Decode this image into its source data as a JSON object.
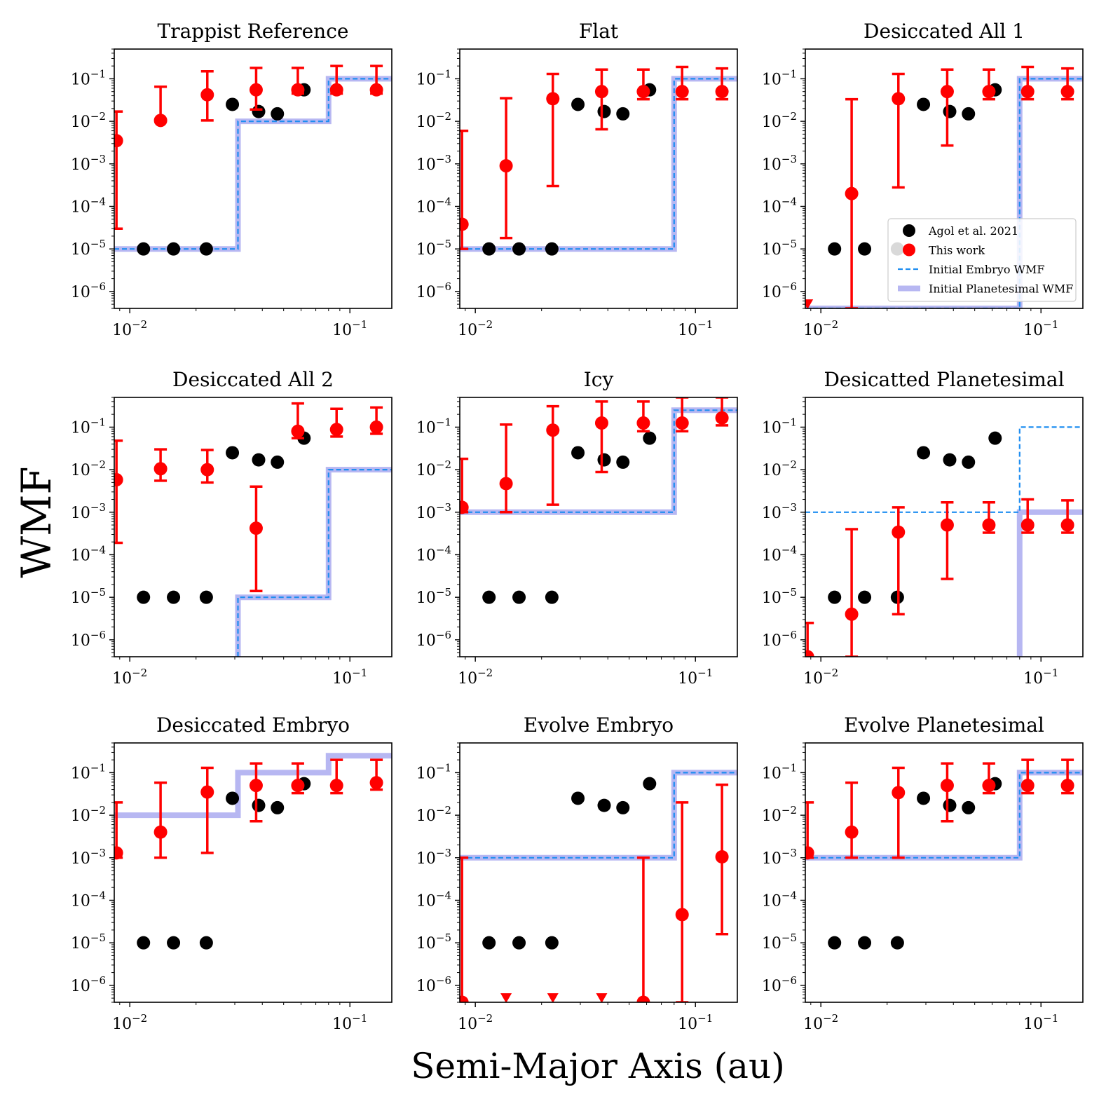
{
  "figure": {
    "ylabel": "WMF",
    "xlabel": "Semi-Major Axis (au)"
  },
  "legend": {
    "panel": 2,
    "placement": "lower-right",
    "entries": [
      {
        "label": "Agol et al. 2021",
        "kind": "marker",
        "color": "#000000"
      },
      {
        "label": "This work",
        "kind": "marker",
        "color": "#ff0000"
      },
      {
        "label": "Initial Embryo WMF",
        "kind": "dashed",
        "color": "#1f8ef1"
      },
      {
        "label": "Initial Planetesimal WMF",
        "kind": "band",
        "color": "#b7b7f2"
      }
    ]
  },
  "colors": {
    "agol": "#000000",
    "this_work": "#ff0000",
    "embryo": "#1f8ef1",
    "planetesimal": "#b7b7f2"
  },
  "chart_data": [
    {
      "type": "scatter",
      "title": "Trappist Reference",
      "xscale": "log",
      "yscale": "log",
      "xlim": [
        0.0085,
        0.155
      ],
      "ylim": [
        4e-07,
        0.5
      ],
      "xticks": [
        "10⁻²",
        "10⁻¹"
      ],
      "yticks": [
        "10⁻⁶",
        "10⁻⁵",
        "10⁻⁴",
        "10⁻³",
        "10⁻²",
        "10⁻¹"
      ],
      "agol": {
        "x": [
          0.01154,
          0.0158,
          0.02227,
          0.02925,
          0.03849,
          0.04683,
          0.06189
        ],
        "y": [
          1e-05,
          1e-05,
          1e-05,
          0.025,
          0.017,
          0.015,
          0.055
        ]
      },
      "this_work": [
        {
          "x": 0.0087,
          "y": 0.0035,
          "lo": 3e-05,
          "hi": 0.017
        },
        {
          "x": 0.0138,
          "y": 0.0105,
          "lo": 0.0098,
          "hi": 0.065
        },
        {
          "x": 0.0225,
          "y": 0.042,
          "lo": 0.0105,
          "hi": 0.15
        },
        {
          "x": 0.0375,
          "y": 0.055,
          "lo": 0.019,
          "hi": 0.18
        },
        {
          "x": 0.058,
          "y": 0.055,
          "lo": 0.045,
          "hi": 0.18
        },
        {
          "x": 0.087,
          "y": 0.055,
          "lo": 0.045,
          "hi": 0.2
        },
        {
          "x": 0.132,
          "y": 0.055,
          "lo": 0.045,
          "hi": 0.2
        }
      ],
      "upper_limits": [],
      "embryo": {
        "x": [
          0.0085,
          0.031,
          0.031,
          0.08,
          0.08,
          0.155
        ],
        "y": [
          1e-05,
          1e-05,
          0.01,
          0.01,
          0.1,
          0.1
        ]
      },
      "planetesimal": {
        "x": [
          0.0085,
          0.031,
          0.031,
          0.08,
          0.08,
          0.155
        ],
        "y": [
          1e-05,
          1e-05,
          0.01,
          0.01,
          0.1,
          0.1
        ]
      }
    },
    {
      "type": "scatter",
      "title": "Flat",
      "xscale": "log",
      "yscale": "log",
      "xlim": [
        0.0085,
        0.155
      ],
      "ylim": [
        4e-07,
        0.5
      ],
      "xticks": [
        "10⁻²",
        "10⁻¹"
      ],
      "yticks": [
        "10⁻⁶",
        "10⁻⁵",
        "10⁻⁴",
        "10⁻³",
        "10⁻²",
        "10⁻¹"
      ],
      "agol": {
        "x": [
          0.01154,
          0.0158,
          0.02227,
          0.02925,
          0.03849,
          0.04683,
          0.06189
        ],
        "y": [
          1e-05,
          1e-05,
          1e-05,
          0.025,
          0.017,
          0.015,
          0.055
        ]
      },
      "this_work": [
        {
          "x": 0.0087,
          "y": 3.8e-05,
          "lo": 1e-05,
          "hi": 0.006
        },
        {
          "x": 0.0138,
          "y": 0.0009,
          "lo": 1.8e-05,
          "hi": 0.035
        },
        {
          "x": 0.0225,
          "y": 0.034,
          "lo": 0.0003,
          "hi": 0.13
        },
        {
          "x": 0.0375,
          "y": 0.05,
          "lo": 0.0065,
          "hi": 0.165
        },
        {
          "x": 0.058,
          "y": 0.05,
          "lo": 0.033,
          "hi": 0.165
        },
        {
          "x": 0.087,
          "y": 0.05,
          "lo": 0.033,
          "hi": 0.19
        },
        {
          "x": 0.132,
          "y": 0.05,
          "lo": 0.033,
          "hi": 0.175
        }
      ],
      "upper_limits": [],
      "embryo": {
        "x": [
          0.0085,
          0.08,
          0.08,
          0.155
        ],
        "y": [
          1e-05,
          1e-05,
          0.1,
          0.1
        ]
      },
      "planetesimal": {
        "x": [
          0.0085,
          0.08,
          0.08,
          0.155
        ],
        "y": [
          1e-05,
          1e-05,
          0.1,
          0.1
        ]
      }
    },
    {
      "type": "scatter",
      "title": "Desiccated All 1",
      "xscale": "log",
      "yscale": "log",
      "xlim": [
        0.0085,
        0.155
      ],
      "ylim": [
        4e-07,
        0.5
      ],
      "xticks": [
        "10⁻²",
        "10⁻¹"
      ],
      "yticks": [
        "10⁻⁶",
        "10⁻⁵",
        "10⁻⁴",
        "10⁻³",
        "10⁻²",
        "10⁻¹"
      ],
      "agol": {
        "x": [
          0.01154,
          0.0158,
          0.02227,
          0.02925,
          0.03849,
          0.04683,
          0.06189
        ],
        "y": [
          1e-05,
          1e-05,
          1e-05,
          0.025,
          0.017,
          0.015,
          0.055
        ]
      },
      "this_work": [
        {
          "x": 0.0138,
          "y": 0.0002,
          "lo": 4e-07,
          "hi": 0.033
        },
        {
          "x": 0.0225,
          "y": 0.034,
          "lo": 0.00028,
          "hi": 0.13
        },
        {
          "x": 0.0375,
          "y": 0.05,
          "lo": 0.0027,
          "hi": 0.165
        },
        {
          "x": 0.058,
          "y": 0.05,
          "lo": 0.033,
          "hi": 0.165
        },
        {
          "x": 0.087,
          "y": 0.05,
          "lo": 0.033,
          "hi": 0.19
        },
        {
          "x": 0.132,
          "y": 0.05,
          "lo": 0.033,
          "hi": 0.175
        }
      ],
      "upper_limits": [
        {
          "x": 0.0087,
          "y": 5e-07
        }
      ],
      "embryo": {
        "x": [
          0.0085,
          0.08,
          0.08,
          0.155
        ],
        "y": [
          4e-07,
          4e-07,
          0.1,
          0.1
        ]
      },
      "planetesimal": {
        "x": [
          0.0085,
          0.08,
          0.08,
          0.155
        ],
        "y": [
          4e-07,
          4e-07,
          0.1,
          0.1
        ]
      }
    },
    {
      "type": "scatter",
      "title": "Desiccated All 2",
      "xscale": "log",
      "yscale": "log",
      "xlim": [
        0.0085,
        0.155
      ],
      "ylim": [
        4e-07,
        0.5
      ],
      "xticks": [
        "10⁻²",
        "10⁻¹"
      ],
      "yticks": [
        "10⁻⁶",
        "10⁻⁵",
        "10⁻⁴",
        "10⁻³",
        "10⁻²",
        "10⁻¹"
      ],
      "agol": {
        "x": [
          0.01154,
          0.0158,
          0.02227,
          0.02925,
          0.03849,
          0.04683,
          0.06189
        ],
        "y": [
          1e-05,
          1e-05,
          1e-05,
          0.025,
          0.017,
          0.015,
          0.055
        ]
      },
      "this_work": [
        {
          "x": 0.0087,
          "y": 0.0058,
          "lo": 0.00019,
          "hi": 0.048
        },
        {
          "x": 0.0138,
          "y": 0.0105,
          "lo": 0.0055,
          "hi": 0.03
        },
        {
          "x": 0.0225,
          "y": 0.01,
          "lo": 0.005,
          "hi": 0.029
        },
        {
          "x": 0.0375,
          "y": 0.00042,
          "lo": 1.4e-05,
          "hi": 0.004
        },
        {
          "x": 0.058,
          "y": 0.08,
          "lo": 0.055,
          "hi": 0.36
        },
        {
          "x": 0.087,
          "y": 0.088,
          "lo": 0.06,
          "hi": 0.27
        },
        {
          "x": 0.132,
          "y": 0.1,
          "lo": 0.07,
          "hi": 0.29
        }
      ],
      "upper_limits": [],
      "embryo": {
        "x": [
          0.031,
          0.031,
          0.08,
          0.08,
          0.155
        ],
        "y": [
          4e-07,
          1e-05,
          1e-05,
          0.01,
          0.01
        ]
      },
      "planetesimal": {
        "x": [
          0.031,
          0.031,
          0.08,
          0.08,
          0.155
        ],
        "y": [
          4e-07,
          1e-05,
          1e-05,
          0.01,
          0.01
        ]
      }
    },
    {
      "type": "scatter",
      "title": "Icy",
      "xscale": "log",
      "yscale": "log",
      "xlim": [
        0.0085,
        0.155
      ],
      "ylim": [
        4e-07,
        0.5
      ],
      "xticks": [
        "10⁻²",
        "10⁻¹"
      ],
      "yticks": [
        "10⁻⁶",
        "10⁻⁵",
        "10⁻⁴",
        "10⁻³",
        "10⁻²",
        "10⁻¹"
      ],
      "agol": {
        "x": [
          0.01154,
          0.0158,
          0.02227,
          0.02925,
          0.03849,
          0.04683,
          0.06189
        ],
        "y": [
          1e-05,
          1e-05,
          1e-05,
          0.025,
          0.017,
          0.015,
          0.055
        ]
      },
      "this_work": [
        {
          "x": 0.0087,
          "y": 0.0013,
          "lo": 0.001,
          "hi": 0.018
        },
        {
          "x": 0.0138,
          "y": 0.0047,
          "lo": 0.001,
          "hi": 0.115
        },
        {
          "x": 0.0225,
          "y": 0.085,
          "lo": 0.0015,
          "hi": 0.31
        },
        {
          "x": 0.0375,
          "y": 0.125,
          "lo": 0.0088,
          "hi": 0.4
        },
        {
          "x": 0.058,
          "y": 0.125,
          "lo": 0.08,
          "hi": 0.4
        },
        {
          "x": 0.087,
          "y": 0.125,
          "lo": 0.08,
          "hi": 0.5
        },
        {
          "x": 0.132,
          "y": 0.165,
          "lo": 0.11,
          "hi": 0.5
        }
      ],
      "upper_limits": [],
      "embryo": {
        "x": [
          0.0085,
          0.08,
          0.08,
          0.155
        ],
        "y": [
          0.001,
          0.001,
          0.25,
          0.25
        ]
      },
      "planetesimal": {
        "x": [
          0.0085,
          0.08,
          0.08,
          0.155
        ],
        "y": [
          0.001,
          0.001,
          0.25,
          0.25
        ]
      }
    },
    {
      "type": "scatter",
      "title": "Desicatted Planetesimal",
      "xscale": "log",
      "yscale": "log",
      "xlim": [
        0.0085,
        0.155
      ],
      "ylim": [
        4e-07,
        0.5
      ],
      "xticks": [
        "10⁻²",
        "10⁻¹"
      ],
      "yticks": [
        "10⁻⁶",
        "10⁻⁵",
        "10⁻⁴",
        "10⁻³",
        "10⁻²",
        "10⁻¹"
      ],
      "agol": {
        "x": [
          0.01154,
          0.0158,
          0.02227,
          0.02925,
          0.03849,
          0.04683,
          0.06189
        ],
        "y": [
          1e-05,
          1e-05,
          1e-05,
          0.025,
          0.017,
          0.015,
          0.055
        ]
      },
      "this_work": [
        {
          "x": 0.0087,
          "y": 4e-07,
          "lo": 4e-07,
          "hi": 2.5e-06
        },
        {
          "x": 0.0138,
          "y": 4e-06,
          "lo": 4e-07,
          "hi": 0.0004
        },
        {
          "x": 0.0225,
          "y": 0.00034,
          "lo": 4e-06,
          "hi": 0.0013
        },
        {
          "x": 0.0375,
          "y": 0.0005,
          "lo": 2.7e-05,
          "hi": 0.0017
        },
        {
          "x": 0.058,
          "y": 0.0005,
          "lo": 0.00033,
          "hi": 0.0017
        },
        {
          "x": 0.087,
          "y": 0.0005,
          "lo": 0.00033,
          "hi": 0.002
        },
        {
          "x": 0.132,
          "y": 0.0005,
          "lo": 0.00033,
          "hi": 0.0019
        }
      ],
      "upper_limits": [],
      "embryo": {
        "x": [
          0.0085,
          0.08,
          0.08,
          0.155
        ],
        "y": [
          0.001,
          0.001,
          0.1,
          0.1
        ]
      },
      "planetesimal": {
        "x": [
          0.08,
          0.08,
          0.155
        ],
        "y": [
          4e-07,
          0.001,
          0.001
        ]
      }
    },
    {
      "type": "scatter",
      "title": "Desiccated Embryo",
      "xscale": "log",
      "yscale": "log",
      "xlim": [
        0.0085,
        0.155
      ],
      "ylim": [
        4e-07,
        0.5
      ],
      "xticks": [
        "10⁻²",
        "10⁻¹"
      ],
      "yticks": [
        "10⁻⁶",
        "10⁻⁵",
        "10⁻⁴",
        "10⁻³",
        "10⁻²",
        "10⁻¹"
      ],
      "agol": {
        "x": [
          0.01154,
          0.0158,
          0.02227,
          0.02925,
          0.03849,
          0.04683,
          0.06189
        ],
        "y": [
          1e-05,
          1e-05,
          1e-05,
          0.025,
          0.017,
          0.015,
          0.055
        ]
      },
      "this_work": [
        {
          "x": 0.0087,
          "y": 0.0013,
          "lo": 0.001,
          "hi": 0.02
        },
        {
          "x": 0.0138,
          "y": 0.004,
          "lo": 0.001,
          "hi": 0.058
        },
        {
          "x": 0.0225,
          "y": 0.035,
          "lo": 0.0013,
          "hi": 0.13
        },
        {
          "x": 0.0375,
          "y": 0.05,
          "lo": 0.0072,
          "hi": 0.165
        },
        {
          "x": 0.058,
          "y": 0.05,
          "lo": 0.033,
          "hi": 0.165
        },
        {
          "x": 0.087,
          "y": 0.05,
          "lo": 0.033,
          "hi": 0.2
        },
        {
          "x": 0.132,
          "y": 0.058,
          "lo": 0.04,
          "hi": 0.2
        }
      ],
      "upper_limits": [],
      "embryo": null,
      "planetesimal": {
        "x": [
          0.0085,
          0.031,
          0.031,
          0.08,
          0.08,
          0.155
        ],
        "y": [
          0.01,
          0.01,
          0.1,
          0.1,
          0.25,
          0.25
        ]
      }
    },
    {
      "type": "scatter",
      "title": "Evolve Embryo",
      "xscale": "log",
      "yscale": "log",
      "xlim": [
        0.0085,
        0.155
      ],
      "ylim": [
        4e-07,
        0.5
      ],
      "xticks": [
        "10⁻²",
        "10⁻¹"
      ],
      "yticks": [
        "10⁻⁶",
        "10⁻⁵",
        "10⁻⁴",
        "10⁻³",
        "10⁻²",
        "10⁻¹"
      ],
      "agol": {
        "x": [
          0.01154,
          0.0158,
          0.02227,
          0.02925,
          0.03849,
          0.04683,
          0.06189
        ],
        "y": [
          1e-05,
          1e-05,
          1e-05,
          0.025,
          0.017,
          0.015,
          0.055
        ]
      },
      "this_work": [
        {
          "x": 0.0087,
          "y": 4e-07,
          "lo": 4e-07,
          "hi": 0.001
        },
        {
          "x": 0.058,
          "y": 4e-07,
          "lo": 4e-07,
          "hi": 0.001
        },
        {
          "x": 0.087,
          "y": 4.6e-05,
          "lo": 4e-07,
          "hi": 0.02
        },
        {
          "x": 0.132,
          "y": 0.00105,
          "lo": 1.6e-05,
          "hi": 0.052
        }
      ],
      "upper_limits": [
        {
          "x": 0.0138,
          "y": 5e-07
        },
        {
          "x": 0.0225,
          "y": 5e-07
        },
        {
          "x": 0.0375,
          "y": 5e-07
        }
      ],
      "embryo": {
        "x": [
          0.0085,
          0.08,
          0.08,
          0.155
        ],
        "y": [
          0.001,
          0.001,
          0.1,
          0.1
        ]
      },
      "planetesimal": {
        "x": [
          0.0085,
          0.08,
          0.08,
          0.155
        ],
        "y": [
          0.001,
          0.001,
          0.1,
          0.1
        ]
      }
    },
    {
      "type": "scatter",
      "title": "Evolve Planetesimal",
      "xscale": "log",
      "yscale": "log",
      "xlim": [
        0.0085,
        0.155
      ],
      "ylim": [
        4e-07,
        0.5
      ],
      "xticks": [
        "10⁻²",
        "10⁻¹"
      ],
      "yticks": [
        "10⁻⁶",
        "10⁻⁵",
        "10⁻⁴",
        "10⁻³",
        "10⁻²",
        "10⁻¹"
      ],
      "agol": {
        "x": [
          0.01154,
          0.0158,
          0.02227,
          0.02925,
          0.03849,
          0.04683,
          0.06189
        ],
        "y": [
          1e-05,
          1e-05,
          1e-05,
          0.025,
          0.017,
          0.015,
          0.055
        ]
      },
      "this_work": [
        {
          "x": 0.0087,
          "y": 0.0013,
          "lo": 0.001,
          "hi": 0.02
        },
        {
          "x": 0.0138,
          "y": 0.004,
          "lo": 0.001,
          "hi": 0.058
        },
        {
          "x": 0.0225,
          "y": 0.034,
          "lo": 0.001,
          "hi": 0.13
        },
        {
          "x": 0.0375,
          "y": 0.05,
          "lo": 0.0072,
          "hi": 0.165
        },
        {
          "x": 0.058,
          "y": 0.05,
          "lo": 0.033,
          "hi": 0.165
        },
        {
          "x": 0.087,
          "y": 0.05,
          "lo": 0.033,
          "hi": 0.2
        },
        {
          "x": 0.132,
          "y": 0.05,
          "lo": 0.033,
          "hi": 0.2
        }
      ],
      "upper_limits": [],
      "embryo": {
        "x": [
          0.0085,
          0.08,
          0.08,
          0.155
        ],
        "y": [
          0.001,
          0.001,
          0.1,
          0.1
        ]
      },
      "planetesimal": {
        "x": [
          0.0085,
          0.08,
          0.08,
          0.155
        ],
        "y": [
          0.001,
          0.001,
          0.1,
          0.1
        ]
      }
    }
  ]
}
